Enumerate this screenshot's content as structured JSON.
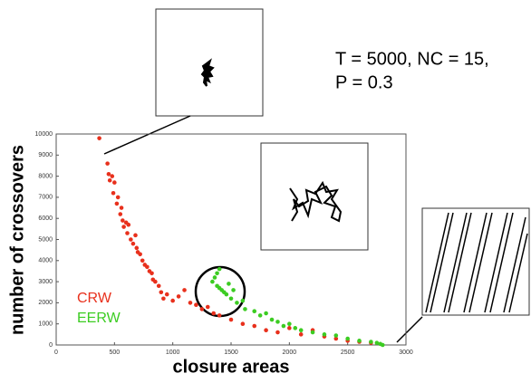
{
  "chart_data": {
    "type": "scatter",
    "xlabel": "closure areas",
    "ylabel": "number of crossovers",
    "annotations": [
      "T = 5000, NC = 15,",
      "P = 0.3"
    ],
    "xlim": [
      0,
      3000
    ],
    "xticks": [
      0,
      500,
      1000,
      1500,
      2000,
      2500,
      3000
    ],
    "ylim": [
      0,
      10000
    ],
    "yticks": [
      0,
      1000,
      2000,
      3000,
      4000,
      5000,
      6000,
      7000,
      8000,
      9000,
      10000
    ],
    "series": [
      {
        "name": "CRW",
        "color": "#e8301c",
        "x": [
          370,
          440,
          450,
          460,
          480,
          500,
          490,
          520,
          530,
          550,
          560,
          570,
          580,
          600,
          610,
          620,
          640,
          660,
          680,
          690,
          700,
          720,
          740,
          760,
          780,
          800,
          820,
          830,
          850,
          880,
          900,
          920,
          950,
          1000,
          1050,
          1100,
          1150,
          1200,
          1250,
          1300,
          1350,
          1400,
          1500,
          1600,
          1700,
          1800,
          1900,
          2000,
          2100,
          2200,
          2300,
          2400,
          2500,
          2600,
          2700
        ],
        "values": [
          9800,
          8600,
          8100,
          7800,
          8000,
          7700,
          7200,
          6700,
          7000,
          6200,
          6500,
          5900,
          5600,
          5800,
          5300,
          5700,
          5000,
          4800,
          5200,
          4600,
          4400,
          4300,
          4000,
          3800,
          3700,
          3500,
          3400,
          3100,
          3000,
          2800,
          2500,
          2200,
          2400,
          2100,
          2300,
          2600,
          2000,
          1900,
          1700,
          1800,
          1500,
          1400,
          1200,
          1000,
          900,
          700,
          600,
          800,
          500,
          700,
          400,
          300,
          200,
          150,
          100
        ]
      },
      {
        "name": "EERW",
        "color": "#3ccc22",
        "x": [
          1340,
          1360,
          1380,
          1400,
          1420,
          1440,
          1460,
          1380,
          1400,
          1480,
          1500,
          1520,
          1550,
          1600,
          1620,
          1700,
          1750,
          1800,
          1850,
          1900,
          1950,
          2000,
          2050,
          2100,
          2200,
          2300,
          2400,
          2500,
          2600,
          2700,
          2750,
          2780,
          2800
        ],
        "values": [
          3000,
          3200,
          2800,
          2700,
          2600,
          2500,
          2400,
          3400,
          3600,
          2900,
          2200,
          2600,
          2000,
          2100,
          1700,
          1600,
          1400,
          1500,
          1200,
          1100,
          900,
          1000,
          800,
          700,
          600,
          500,
          450,
          300,
          200,
          150,
          100,
          50,
          0
        ]
      }
    ]
  }
}
